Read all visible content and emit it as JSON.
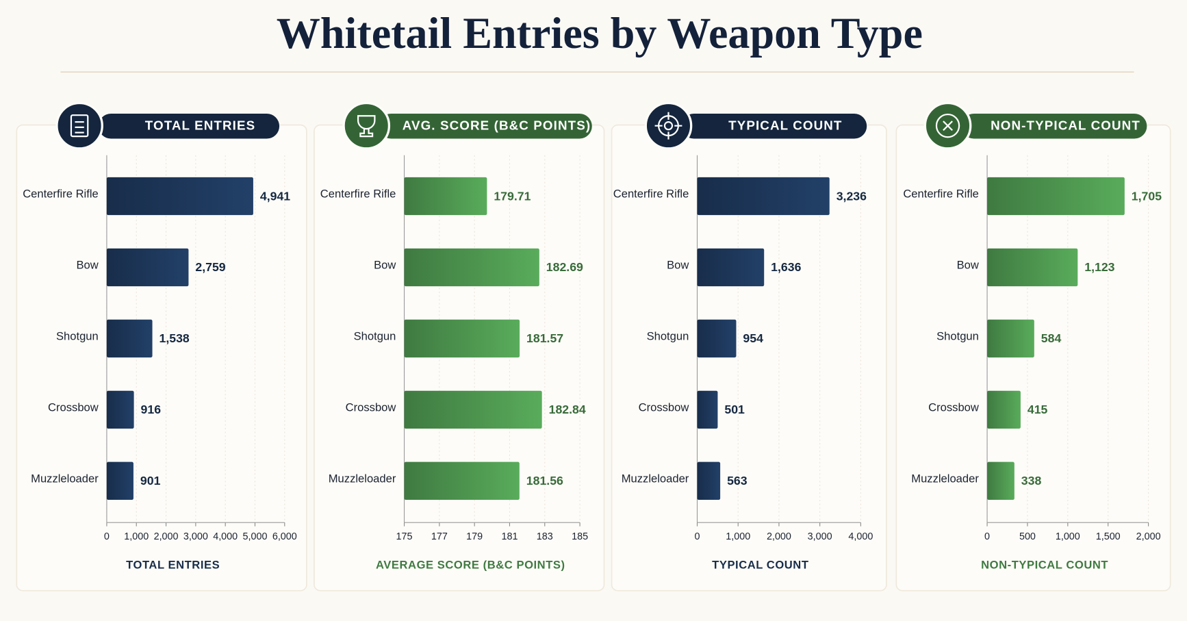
{
  "title": "Whitetail Entries by Weapon Type",
  "chart_data": [
    {
      "type": "bar",
      "orientation": "horizontal",
      "title": "TOTAL ENTRIES",
      "x_label": "TOTAL ENTRIES",
      "color": "#1c3557",
      "categories": [
        "Centerfire Rifle",
        "Bow",
        "Shotgun",
        "Crossbow",
        "Muzzleloader"
      ],
      "values": [
        4941,
        2759,
        1538,
        916,
        901
      ],
      "value_labels": [
        "4,941",
        "2,759",
        "1,538",
        "916",
        "901"
      ],
      "xlim": [
        0,
        6000
      ],
      "xticks": [
        0,
        {
          "value": 1000,
          "label": "1,000"
        },
        {
          "value": 2000,
          "label": "2,000"
        },
        {
          "value": 3000,
          "label": "3,000"
        },
        {
          "value": 4000,
          "label": "4,000"
        },
        {
          "value": 5000,
          "label": "5,000"
        },
        {
          "value": 6000,
          "label": "6,000"
        }
      ],
      "grid": true
    },
    {
      "type": "bar",
      "orientation": "horizontal",
      "title": "AVG. SCORE (B&C POINTS)",
      "x_label": "AVERAGE SCORE (B&C POINTS)",
      "color": "#4a8f4c",
      "categories": [
        "Centerfire Rifle",
        "Bow",
        "Shotgun",
        "Crossbow",
        "Muzzleloader"
      ],
      "values": [
        179.71,
        182.69,
        181.57,
        182.84,
        181.56
      ],
      "xlim": [
        175,
        185
      ],
      "xticks": [
        175,
        177,
        179,
        181,
        183,
        185
      ],
      "grid": true
    },
    {
      "type": "bar",
      "orientation": "horizontal",
      "title": "TYPICAL COUNT",
      "x_label": "TYPICAL COUNT",
      "color": "#1c3557",
      "categories": [
        "Centerfire Rifle",
        "Bow",
        "Shotgun",
        "Crossbow",
        "Muzzleloader"
      ],
      "values": [
        3236,
        1636,
        954,
        501,
        563
      ],
      "value_labels": [
        "3,236",
        "1,636",
        "954",
        "501",
        "563"
      ],
      "xlim": [
        0,
        4000
      ],
      "xticks": [
        0,
        {
          "value": 1000,
          "label": "1,000"
        },
        {
          "value": 2000,
          "label": "2,000"
        },
        {
          "value": 3000,
          "label": "3,000"
        },
        {
          "value": 4000,
          "label": "4,000"
        }
      ],
      "grid": true
    },
    {
      "type": "bar",
      "orientation": "horizontal",
      "title": "NON-TYPICAL COUNT",
      "x_label": "NON-TYPICAL COUNT",
      "color": "#4a8f4c",
      "categories": [
        "Centerfire Rifle",
        "Bow",
        "Shotgun",
        "Crossbow",
        "Muzzleloader"
      ],
      "values": [
        1705,
        1123,
        584,
        415,
        338
      ],
      "value_labels": [
        "1,705",
        "1,123",
        "584",
        "415",
        "338"
      ],
      "xlim": [
        0,
        2000
      ],
      "xticks": [
        0,
        500,
        {
          "value": 1000,
          "label": "1,000"
        },
        {
          "value": 1500,
          "label": "1,500"
        },
        {
          "value": 2000,
          "label": "2,000"
        }
      ],
      "grid": true
    }
  ]
}
